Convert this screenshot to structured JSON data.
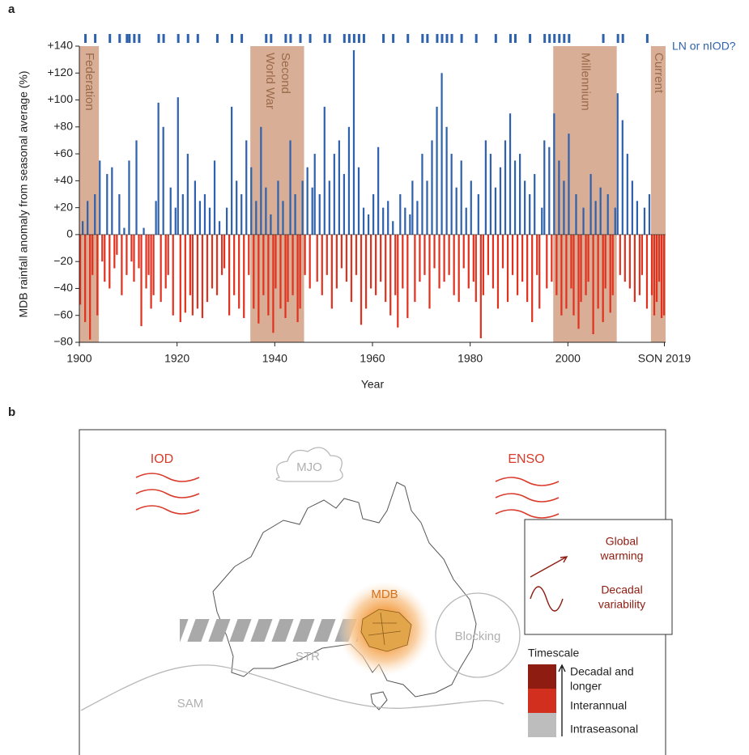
{
  "chart_data": {
    "type": "bar",
    "panel_label": "a",
    "ylabel": "MDB rainfall anomaly from seasonal average (%)",
    "xlabel": "Year",
    "xlim": [
      1900,
      2020
    ],
    "xticks": [
      1900,
      1920,
      1940,
      1960,
      1980,
      2000,
      {
        "value": 2019.75,
        "label": "SON 2019"
      }
    ],
    "ylim": [
      -80,
      140
    ],
    "yticks": [
      {
        "value": -80,
        "label": "−80"
      },
      {
        "value": -60,
        "label": "−60"
      },
      {
        "value": -40,
        "label": "−40"
      },
      {
        "value": -20,
        "label": "−20"
      },
      0,
      {
        "value": 20,
        "label": "+20"
      },
      {
        "value": 40,
        "label": "+40"
      },
      {
        "value": 60,
        "label": "+60"
      },
      {
        "value": 80,
        "label": "+80"
      },
      {
        "value": 100,
        "label": "+100"
      },
      {
        "value": 120,
        "label": "+120"
      },
      {
        "value": 140,
        "label": "+140"
      }
    ],
    "color_positive": "#2e62ad",
    "color_negative": "#e1311f",
    "x": [
      1900,
      1900.5,
      1901,
      1901.5,
      1902,
      1902.5,
      1903,
      1903.5,
      1904,
      1904.5,
      1905,
      1905.5,
      1906,
      1906.5,
      1907,
      1907.5,
      1908,
      1908.5,
      1909,
      1909.5,
      1910,
      1910.5,
      1911,
      1911.5,
      1912,
      1912.5,
      1913,
      1913.5,
      1914,
      1914.5,
      1915,
      1915.5,
      1916,
      1916.5,
      1917,
      1917.5,
      1918,
      1918.5,
      1919,
      1919.5,
      1920,
      1920.5,
      1921,
      1921.5,
      1922,
      1922.5,
      1923,
      1923.5,
      1924,
      1924.5,
      1925,
      1925.5,
      1926,
      1926.5,
      1927,
      1927.5,
      1928,
      1928.5,
      1929,
      1929.5,
      1930,
      1930.5,
      1931,
      1931.5,
      1932,
      1932.5,
      1933,
      1933.5,
      1934,
      1934.5,
      1935,
      1935.5,
      1936,
      1936.5,
      1937,
      1937.5,
      1938,
      1938.5,
      1939,
      1939.5,
      1940,
      1940.5,
      1941,
      1941.5,
      1942,
      1942.5,
      1943,
      1943.5,
      1944,
      1944.5,
      1945,
      1945.5,
      1946,
      1946.5,
      1947,
      1947.5,
      1948,
      1948.5,
      1949,
      1949.5,
      1950,
      1950.5,
      1951,
      1951.5,
      1952,
      1952.5,
      1953,
      1953.5,
      1954,
      1954.5,
      1955,
      1955.5,
      1956,
      1956.5,
      1957,
      1957.5,
      1958,
      1958.5,
      1959,
      1959.5,
      1960,
      1960.5,
      1961,
      1961.5,
      1962,
      1962.5,
      1963,
      1963.5,
      1964,
      1964.5,
      1965,
      1965.5,
      1966,
      1966.5,
      1967,
      1967.5,
      1968,
      1968.5,
      1969,
      1969.5,
      1970,
      1970.5,
      1971,
      1971.5,
      1972,
      1972.5,
      1973,
      1973.5,
      1974,
      1974.5,
      1975,
      1975.5,
      1976,
      1976.5,
      1977,
      1977.5,
      1978,
      1978.5,
      1979,
      1979.5,
      1980,
      1980.5,
      1981,
      1981.5,
      1982,
      1982.5,
      1983,
      1983.5,
      1984,
      1984.5,
      1985,
      1985.5,
      1986,
      1986.5,
      1987,
      1987.5,
      1988,
      1988.5,
      1989,
      1989.5,
      1990,
      1990.5,
      1991,
      1991.5,
      1992,
      1992.5,
      1993,
      1993.5,
      1994,
      1994.5,
      1995,
      1995.5,
      1996,
      1996.5,
      1997,
      1997.5,
      1998,
      1998.5,
      1999,
      1999.5,
      2000,
      2000.5,
      2001,
      2001.5,
      2002,
      2002.5,
      2003,
      2003.5,
      2004,
      2004.5,
      2005,
      2005.5,
      2006,
      2006.5,
      2007,
      2007.5,
      2008,
      2008.5,
      2009,
      2009.5,
      2010,
      2010.5,
      2011,
      2011.5,
      2012,
      2012.5,
      2013,
      2013.5,
      2014,
      2014.5,
      2015,
      2015.5,
      2016,
      2016.5,
      2017,
      2017.5,
      2018,
      2018.5,
      2019,
      2019.5
    ],
    "values": [
      -52,
      10,
      -65,
      25,
      -78,
      -30,
      30,
      -60,
      55,
      -20,
      -35,
      45,
      -40,
      50,
      -25,
      -15,
      30,
      -45,
      5,
      -30,
      55,
      -20,
      -35,
      70,
      -25,
      -68,
      5,
      -40,
      -30,
      -55,
      -45,
      25,
      98,
      -50,
      80,
      -40,
      -30,
      35,
      -60,
      20,
      102,
      -65,
      30,
      -58,
      60,
      -45,
      -60,
      40,
      -55,
      25,
      -62,
      30,
      -50,
      20,
      -40,
      55,
      -45,
      10,
      -30,
      -25,
      20,
      -60,
      95,
      -45,
      40,
      -55,
      30,
      -62,
      70,
      -30,
      50,
      -55,
      25,
      -66,
      80,
      -45,
      35,
      -60,
      15,
      -73,
      -40,
      40,
      -55,
      25,
      -62,
      -50,
      70,
      -45,
      30,
      -65,
      -55,
      40,
      -30,
      50,
      -40,
      35,
      60,
      -35,
      30,
      -45,
      95,
      -30,
      40,
      -55,
      60,
      -40,
      70,
      -25,
      45,
      -35,
      80,
      -50,
      137,
      -30,
      50,
      -67,
      20,
      -55,
      15,
      -40,
      30,
      -45,
      65,
      -35,
      20,
      -50,
      25,
      -60,
      10,
      -45,
      -69,
      30,
      -40,
      20,
      -62,
      15,
      40,
      -50,
      25,
      -35,
      60,
      -30,
      40,
      -55,
      70,
      -25,
      95,
      -40,
      120,
      -35,
      80,
      -30,
      60,
      -45,
      35,
      -50,
      55,
      -25,
      20,
      -40,
      40,
      -35,
      -50,
      30,
      -77,
      -45,
      70,
      -30,
      60,
      -40,
      35,
      -55,
      50,
      -25,
      70,
      -50,
      90,
      -30,
      55,
      -45,
      60,
      -35,
      40,
      -50,
      30,
      -65,
      45,
      -30,
      -55,
      20,
      70,
      -40,
      65,
      -35,
      90,
      -45,
      55,
      -60,
      40,
      -55,
      75,
      -40,
      -60,
      30,
      -70,
      -50,
      20,
      -45,
      -35,
      45,
      -74,
      25,
      -55,
      35,
      -65,
      -40,
      30,
      -58,
      -45,
      20,
      105,
      -30,
      85,
      -35,
      60,
      -40,
      40,
      -50,
      25,
      -45,
      -30,
      20,
      -55,
      30,
      -45,
      -60,
      -50,
      -35,
      -62,
      -60
    ],
    "periods": [
      {
        "lines": [
          "Federation"
        ],
        "start": 1900,
        "end": 1904
      },
      {
        "lines": [
          "Second",
          "World War"
        ],
        "start": 1935,
        "end": 1946
      },
      {
        "lines": [
          "Millennium"
        ],
        "start": 1997,
        "end": 2010
      },
      {
        "lines": [
          "Current"
        ],
        "start": 2017,
        "end": 2020
      }
    ],
    "period_color": "#d9ae96",
    "events": {
      "name": "LN or nIOD?",
      "color": "#2e62ad",
      "x": [
        1901,
        1903,
        1906,
        1908,
        1909.5,
        1910,
        1911,
        1912,
        1916,
        1917,
        1920,
        1922,
        1924,
        1928,
        1931,
        1933,
        1938,
        1939,
        1942,
        1943,
        1945,
        1947,
        1950,
        1951,
        1954,
        1955,
        1956,
        1957,
        1958,
        1962,
        1964,
        1967,
        1970,
        1971,
        1973,
        1974,
        1975,
        1976,
        1978,
        1981,
        1985,
        1988,
        1989,
        1992,
        1995,
        1996,
        1997,
        1998,
        1999,
        2000,
        2007,
        2010,
        2011,
        2016
      ]
    }
  },
  "diagram": {
    "panel_label": "b",
    "drivers": {
      "iod": "IOD",
      "mjo": "MJO",
      "enso": "ENSO",
      "mdb": "MDB",
      "str": "STR",
      "blocking": "Blocking",
      "sam": "SAM"
    },
    "legend": {
      "global_warming": [
        "Global",
        "warming"
      ],
      "decadal_variability": [
        "Decadal",
        "variability"
      ]
    },
    "timescale": {
      "title": "Timescale",
      "decadal": [
        "Decadal and",
        "longer"
      ],
      "interannual": "Interannual",
      "intraseasonal": "Intraseasonal"
    }
  }
}
